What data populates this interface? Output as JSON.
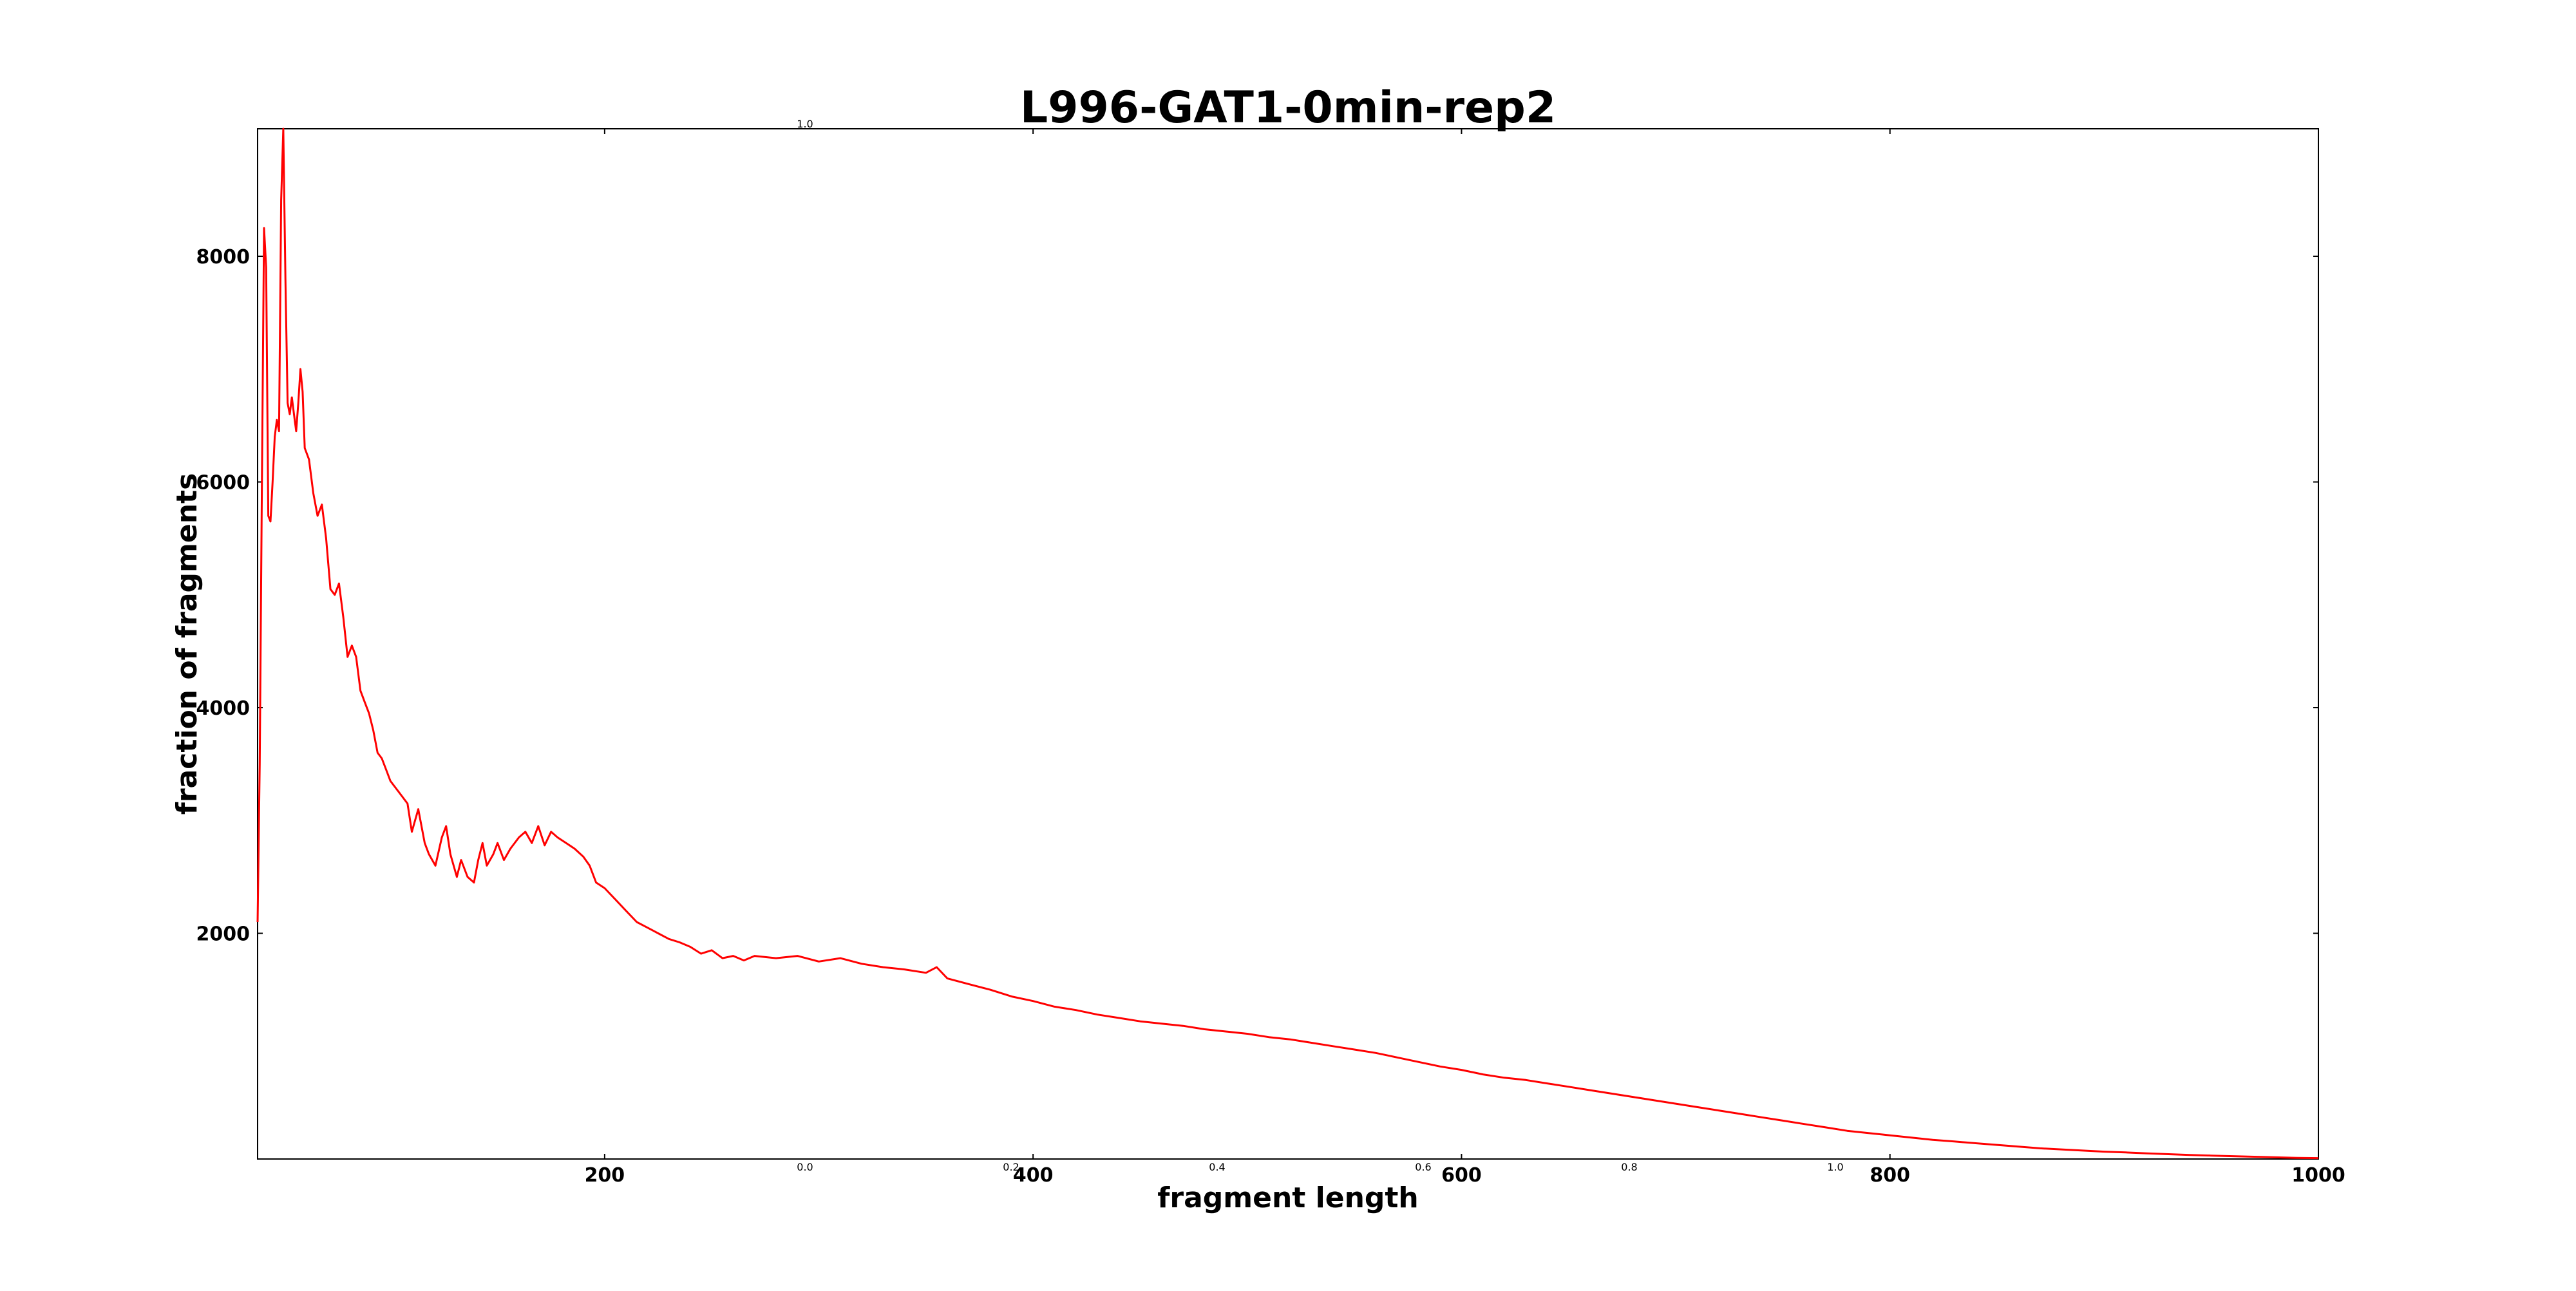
{
  "chart_data": {
    "type": "line",
    "title": "L996-GAT1-0min-rep2",
    "xlabel": "fragment length",
    "ylabel": "fraction of fragments",
    "xlim": [
      38,
      1000
    ],
    "ylim": [
      0,
      9130
    ],
    "x_ticks": [
      200,
      400,
      600,
      800,
      1000
    ],
    "y_ticks": [
      2000,
      4000,
      6000,
      8000
    ],
    "grid": false,
    "legend": "none",
    "ghost_axis_ticks": [
      "0.0",
      "0.2",
      "0.4",
      "0.6",
      "0.8",
      "1.0"
    ],
    "ghost_axis_top": "1.0",
    "line_color": "#ff0000",
    "series": [
      {
        "points": [
          [
            38,
            2100
          ],
          [
            39,
            3500
          ],
          [
            40,
            6000
          ],
          [
            41,
            8250
          ],
          [
            42,
            7900
          ],
          [
            43,
            5700
          ],
          [
            44,
            5650
          ],
          [
            45,
            6000
          ],
          [
            46,
            6400
          ],
          [
            47,
            6550
          ],
          [
            48,
            6450
          ],
          [
            49,
            8500
          ],
          [
            50,
            9130
          ],
          [
            51,
            7800
          ],
          [
            52,
            6700
          ],
          [
            53,
            6600
          ],
          [
            54,
            6750
          ],
          [
            55,
            6600
          ],
          [
            56,
            6450
          ],
          [
            57,
            6700
          ],
          [
            58,
            7000
          ],
          [
            59,
            6800
          ],
          [
            60,
            6300
          ],
          [
            62,
            6200
          ],
          [
            64,
            5900
          ],
          [
            66,
            5700
          ],
          [
            68,
            5800
          ],
          [
            70,
            5500
          ],
          [
            72,
            5050
          ],
          [
            74,
            5000
          ],
          [
            76,
            5100
          ],
          [
            78,
            4800
          ],
          [
            80,
            4450
          ],
          [
            82,
            4550
          ],
          [
            84,
            4450
          ],
          [
            86,
            4150
          ],
          [
            88,
            4050
          ],
          [
            90,
            3950
          ],
          [
            92,
            3800
          ],
          [
            94,
            3600
          ],
          [
            96,
            3550
          ],
          [
            98,
            3450
          ],
          [
            100,
            3350
          ],
          [
            104,
            3250
          ],
          [
            108,
            3150
          ],
          [
            110,
            2900
          ],
          [
            113,
            3100
          ],
          [
            116,
            2800
          ],
          [
            118,
            2700
          ],
          [
            121,
            2600
          ],
          [
            124,
            2850
          ],
          [
            126,
            2950
          ],
          [
            128,
            2700
          ],
          [
            131,
            2500
          ],
          [
            133,
            2650
          ],
          [
            136,
            2500
          ],
          [
            139,
            2450
          ],
          [
            141,
            2650
          ],
          [
            143,
            2800
          ],
          [
            145,
            2600
          ],
          [
            148,
            2700
          ],
          [
            150,
            2800
          ],
          [
            153,
            2650
          ],
          [
            156,
            2750
          ],
          [
            160,
            2850
          ],
          [
            163,
            2900
          ],
          [
            166,
            2800
          ],
          [
            169,
            2950
          ],
          [
            172,
            2780
          ],
          [
            175,
            2900
          ],
          [
            178,
            2850
          ],
          [
            182,
            2800
          ],
          [
            186,
            2750
          ],
          [
            190,
            2680
          ],
          [
            193,
            2600
          ],
          [
            196,
            2450
          ],
          [
            200,
            2400
          ],
          [
            205,
            2300
          ],
          [
            210,
            2200
          ],
          [
            215,
            2100
          ],
          [
            220,
            2050
          ],
          [
            225,
            2000
          ],
          [
            230,
            1950
          ],
          [
            235,
            1920
          ],
          [
            240,
            1880
          ],
          [
            245,
            1820
          ],
          [
            250,
            1850
          ],
          [
            255,
            1780
          ],
          [
            260,
            1800
          ],
          [
            265,
            1760
          ],
          [
            270,
            1800
          ],
          [
            280,
            1780
          ],
          [
            290,
            1800
          ],
          [
            300,
            1750
          ],
          [
            310,
            1780
          ],
          [
            320,
            1730
          ],
          [
            330,
            1700
          ],
          [
            340,
            1680
          ],
          [
            350,
            1650
          ],
          [
            355,
            1700
          ],
          [
            360,
            1600
          ],
          [
            370,
            1550
          ],
          [
            380,
            1500
          ],
          [
            390,
            1440
          ],
          [
            400,
            1400
          ],
          [
            410,
            1350
          ],
          [
            420,
            1320
          ],
          [
            430,
            1280
          ],
          [
            440,
            1250
          ],
          [
            450,
            1220
          ],
          [
            460,
            1200
          ],
          [
            470,
            1180
          ],
          [
            480,
            1150
          ],
          [
            490,
            1130
          ],
          [
            500,
            1110
          ],
          [
            510,
            1080
          ],
          [
            520,
            1060
          ],
          [
            530,
            1030
          ],
          [
            540,
            1000
          ],
          [
            550,
            970
          ],
          [
            560,
            940
          ],
          [
            570,
            900
          ],
          [
            580,
            860
          ],
          [
            590,
            820
          ],
          [
            600,
            790
          ],
          [
            610,
            750
          ],
          [
            620,
            720
          ],
          [
            630,
            700
          ],
          [
            640,
            670
          ],
          [
            650,
            640
          ],
          [
            660,
            610
          ],
          [
            670,
            580
          ],
          [
            680,
            550
          ],
          [
            690,
            520
          ],
          [
            700,
            490
          ],
          [
            710,
            460
          ],
          [
            720,
            430
          ],
          [
            730,
            400
          ],
          [
            740,
            370
          ],
          [
            750,
            340
          ],
          [
            760,
            310
          ],
          [
            770,
            280
          ],
          [
            780,
            250
          ],
          [
            790,
            230
          ],
          [
            800,
            210
          ],
          [
            810,
            190
          ],
          [
            820,
            170
          ],
          [
            830,
            155
          ],
          [
            840,
            140
          ],
          [
            850,
            125
          ],
          [
            860,
            110
          ],
          [
            870,
            95
          ],
          [
            880,
            85
          ],
          [
            890,
            75
          ],
          [
            900,
            65
          ],
          [
            910,
            58
          ],
          [
            920,
            50
          ],
          [
            930,
            43
          ],
          [
            940,
            36
          ],
          [
            950,
            30
          ],
          [
            960,
            25
          ],
          [
            970,
            20
          ],
          [
            980,
            15
          ],
          [
            990,
            10
          ],
          [
            1000,
            8
          ]
        ]
      }
    ]
  }
}
